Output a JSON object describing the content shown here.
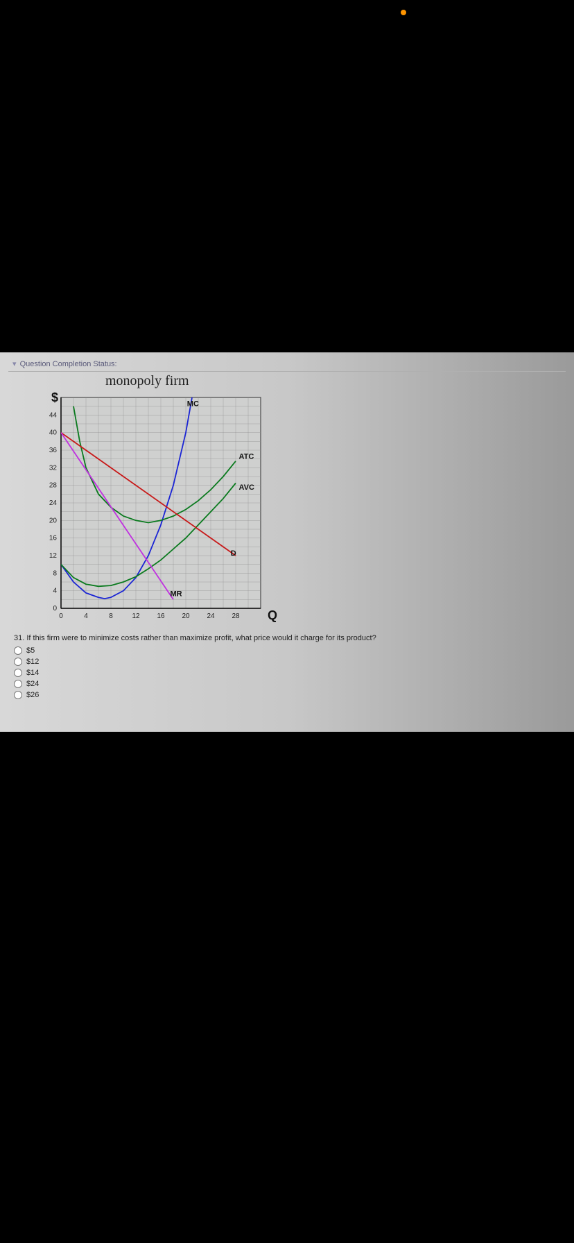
{
  "status_label": "Question Completion Status:",
  "chart": {
    "title": "monopoly firm",
    "y_axis_symbol": "$",
    "x_axis_symbol": "Q",
    "xlim": [
      0,
      32
    ],
    "ylim": [
      0,
      48
    ],
    "x_ticks": [
      0,
      4,
      8,
      12,
      16,
      20,
      24,
      28
    ],
    "y_ticks": [
      0,
      4,
      8,
      12,
      16,
      20,
      24,
      28,
      32,
      36,
      40,
      44
    ],
    "grid_minor_x_step": 2,
    "grid_minor_y_step": 2,
    "background_color": "#cfd0cf",
    "grid_color": "#8c8c8c",
    "axis_color": "#000000",
    "tick_fontsize": 10,
    "title_fontsize": 20,
    "curve_label_fontsize": 11,
    "curves": {
      "MC": {
        "color": "#1b25d4",
        "width": 1.8,
        "label": "MC",
        "label_xy": [
          20.2,
          46
        ],
        "points": [
          [
            0,
            10
          ],
          [
            2,
            6
          ],
          [
            4,
            3.5
          ],
          [
            6,
            2.5
          ],
          [
            7,
            2.2
          ],
          [
            8,
            2.5
          ],
          [
            10,
            4
          ],
          [
            12,
            7
          ],
          [
            14,
            12
          ],
          [
            16,
            19
          ],
          [
            18,
            28
          ],
          [
            20,
            40
          ],
          [
            21,
            48
          ]
        ]
      },
      "ATC": {
        "color": "#0a7a1e",
        "width": 1.8,
        "label": "ATC",
        "label_xy": [
          28.5,
          34
        ],
        "points": [
          [
            2,
            46
          ],
          [
            3,
            38
          ],
          [
            4,
            32
          ],
          [
            6,
            26
          ],
          [
            8,
            23
          ],
          [
            10,
            21
          ],
          [
            12,
            20
          ],
          [
            14,
            19.5
          ],
          [
            16,
            20
          ],
          [
            18,
            21
          ],
          [
            20,
            22.5
          ],
          [
            22,
            24.5
          ],
          [
            24,
            27
          ],
          [
            26,
            30
          ],
          [
            28,
            33.5
          ]
        ]
      },
      "AVC": {
        "color": "#0a7a1e",
        "width": 1.8,
        "label": "AVC",
        "label_xy": [
          28.5,
          27
        ],
        "points": [
          [
            0,
            10
          ],
          [
            2,
            7
          ],
          [
            4,
            5.5
          ],
          [
            6,
            5
          ],
          [
            8,
            5.2
          ],
          [
            10,
            6
          ],
          [
            12,
            7.2
          ],
          [
            14,
            9
          ],
          [
            16,
            11
          ],
          [
            18,
            13.5
          ],
          [
            20,
            16
          ],
          [
            22,
            19
          ],
          [
            24,
            22
          ],
          [
            26,
            25
          ],
          [
            28,
            28.5
          ]
        ]
      },
      "D": {
        "color": "#c81818",
        "width": 1.8,
        "label": "D",
        "label_xy": [
          27.2,
          12
        ],
        "points": [
          [
            0,
            40
          ],
          [
            28,
            12
          ]
        ]
      },
      "MR": {
        "color": "#c030e0",
        "width": 1.8,
        "label": "MR",
        "label_xy": [
          17.5,
          2.8
        ],
        "points": [
          [
            0,
            40
          ],
          [
            18,
            2
          ]
        ]
      }
    }
  },
  "question": {
    "number": "31.",
    "text": "If this firm were to minimize costs rather than maximize profit, what price would it charge for its product?",
    "options": [
      "$5",
      "$12",
      "$14",
      "$24",
      "$26"
    ]
  }
}
